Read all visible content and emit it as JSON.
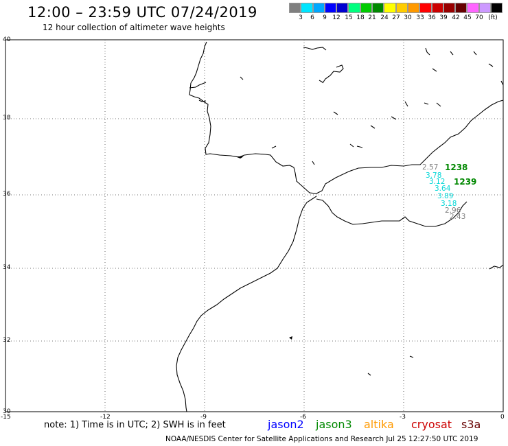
{
  "header": {
    "title": "12:00 – 23:59 UTC 07/24/2019",
    "subtitle": "12 hour collection of altimeter wave heights"
  },
  "color_scale": {
    "colors": [
      "#7f7f7f",
      "#00e5ff",
      "#00a8ff",
      "#0000ff",
      "#0000d0",
      "#00ff7f",
      "#00cc00",
      "#008800",
      "#ffff00",
      "#ffcc00",
      "#ff9900",
      "#ff0000",
      "#cc0000",
      "#990000",
      "#660000",
      "#ff66ff",
      "#cc99ff",
      "#000000"
    ],
    "labels": [
      "3",
      "6",
      "9",
      "12",
      "15",
      "18",
      "21",
      "24",
      "27",
      "30",
      "33",
      "36",
      "39",
      "42",
      "45",
      "70"
    ],
    "unit": "(ft)"
  },
  "axes": {
    "lat_labels": [
      "40",
      "38",
      "36",
      "34",
      "32",
      "30"
    ],
    "lon_labels": [
      "-15",
      "-12",
      "-9",
      "-6",
      "-3",
      "0"
    ]
  },
  "observations": [
    {
      "text": "2.57",
      "color": "#808080"
    },
    {
      "text": "3.78",
      "color": "#00d6d6"
    },
    {
      "text": "3.12",
      "color": "#00d6d6"
    },
    {
      "text": "3.64",
      "color": "#00d6d6"
    },
    {
      "text": "3.89",
      "color": "#00d6d6"
    },
    {
      "text": "3.18",
      "color": "#00d6d6"
    },
    {
      "text": "2.96",
      "color": "#808080"
    },
    {
      "text": "2.43",
      "color": "#808080"
    }
  ],
  "passes": [
    {
      "text": "1238",
      "color": "#008800"
    },
    {
      "text": "1239",
      "color": "#008800"
    }
  ],
  "footer": {
    "note": "note: 1) Time is in UTC; 2) SWH is in feet",
    "legend": [
      {
        "name": "jason2",
        "color": "#0000ff"
      },
      {
        "name": "jason3",
        "color": "#008800"
      },
      {
        "name": "altika",
        "color": "#ff9900"
      },
      {
        "name": "cryosat",
        "color": "#cc0000"
      },
      {
        "name": "s3a",
        "color": "#660000"
      }
    ],
    "credit": "NOAA/NESDIS Center for Satellite Applications and Research    Jul 25 12:27:50 UTC 2019"
  }
}
